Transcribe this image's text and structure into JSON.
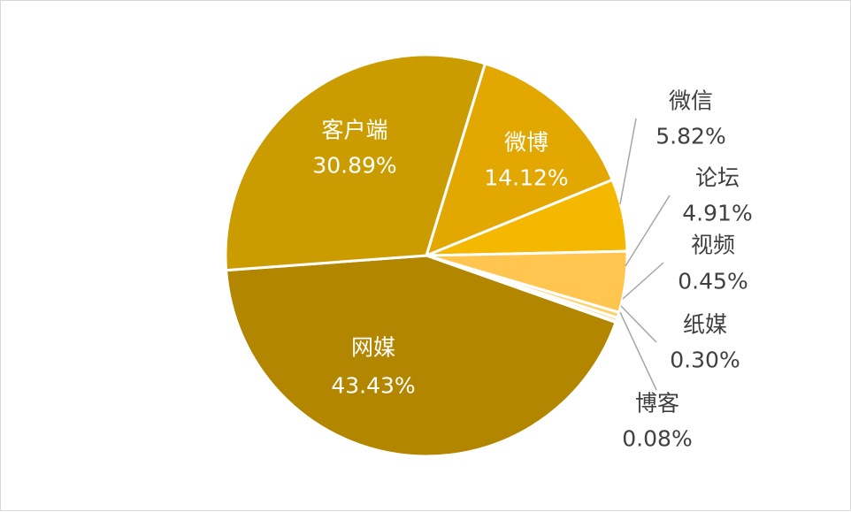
{
  "chart_data": {
    "type": "pie",
    "title": "",
    "slices": [
      {
        "name": "微博",
        "value": 14.12,
        "label": "14.12%",
        "color": "#E2A700"
      },
      {
        "name": "微信",
        "value": 5.82,
        "label": "5.82%",
        "color": "#F4B800"
      },
      {
        "name": "论坛",
        "value": 4.91,
        "label": "4.91%",
        "color": "#FFC54F"
      },
      {
        "name": "视频",
        "value": 0.45,
        "label": "0.45%",
        "color": "#FFCF6A"
      },
      {
        "name": "纸媒",
        "value": 0.3,
        "label": "0.30%",
        "color": "#FFD98A"
      },
      {
        "name": "博客",
        "value": 0.08,
        "label": "0.08%",
        "color": "#FFE3A8"
      },
      {
        "name": "网媒",
        "value": 43.43,
        "label": "43.43%",
        "color": "#B38600"
      },
      {
        "name": "客户端",
        "value": 30.89,
        "label": "30.89%",
        "color": "#CB9C00"
      }
    ],
    "legend": "none",
    "start_angle_deg": 17,
    "direction": "clockwise",
    "label_line_color": "#a6a6a6",
    "slice_border_color": "#ffffff"
  }
}
